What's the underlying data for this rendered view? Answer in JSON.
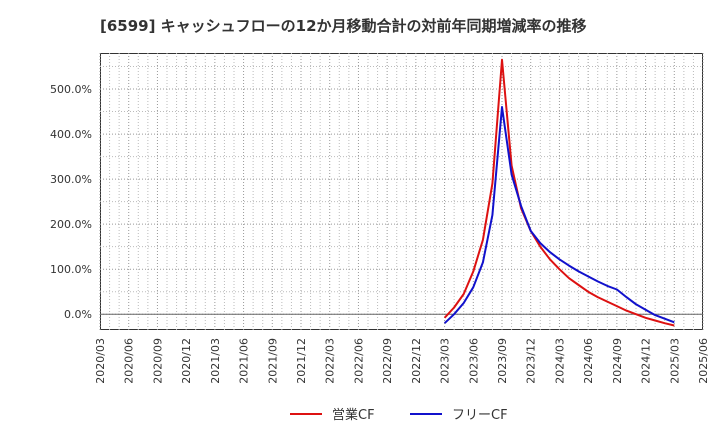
{
  "chart_data": {
    "type": "line",
    "title": "[6599]  キャッシュフローの12か月移動合計の対前年同期増減率の推移",
    "xlabel": "",
    "ylabel": "",
    "ylim": [
      -35,
      580
    ],
    "yticks": [
      0,
      100,
      200,
      300,
      400,
      500
    ],
    "ytick_labels": [
      "0.0%",
      "100.0%",
      "200.0%",
      "300.0%",
      "400.0%",
      "500.0%"
    ],
    "categories": [
      "2020/03",
      "2020/06",
      "2020/09",
      "2020/12",
      "2021/03",
      "2021/06",
      "2021/09",
      "2021/12",
      "2022/03",
      "2022/06",
      "2022/09",
      "2022/12",
      "2023/03",
      "2023/06",
      "2023/09",
      "2023/12",
      "2024/03",
      "2024/06",
      "2024/09",
      "2024/12",
      "2025/03",
      "2025/06"
    ],
    "grid": true,
    "legend_position": "bottom",
    "series": [
      {
        "name": "営業CF",
        "color": "#dd1111",
        "x": [
          "2023/03",
          "2023/04",
          "2023/05",
          "2023/06",
          "2023/07",
          "2023/08",
          "2023/09",
          "2023/10",
          "2023/11",
          "2023/12",
          "2024/01",
          "2024/02",
          "2024/03",
          "2024/04",
          "2024/05",
          "2024/06",
          "2024/07",
          "2024/08",
          "2024/09",
          "2024/10",
          "2024/11",
          "2024/12",
          "2025/01",
          "2025/02",
          "2025/03"
        ],
        "values": [
          -8,
          15,
          45,
          95,
          165,
          290,
          565,
          330,
          235,
          185,
          150,
          122,
          100,
          80,
          65,
          50,
          38,
          28,
          18,
          8,
          0,
          -8,
          -14,
          -20,
          -25
        ]
      },
      {
        "name": "フリーCF",
        "color": "#1111cc",
        "x": [
          "2023/03",
          "2023/04",
          "2023/05",
          "2023/06",
          "2023/07",
          "2023/08",
          "2023/09",
          "2023/10",
          "2023/11",
          "2023/12",
          "2024/01",
          "2024/02",
          "2024/03",
          "2024/04",
          "2024/05",
          "2024/06",
          "2024/07",
          "2024/08",
          "2024/09",
          "2024/10",
          "2024/11",
          "2024/12",
          "2025/01",
          "2025/02",
          "2025/03"
        ],
        "values": [
          -20,
          0,
          25,
          60,
          115,
          220,
          460,
          310,
          240,
          185,
          158,
          138,
          122,
          108,
          95,
          84,
          73,
          63,
          55,
          38,
          22,
          10,
          -2,
          -10,
          -18
        ]
      }
    ]
  }
}
